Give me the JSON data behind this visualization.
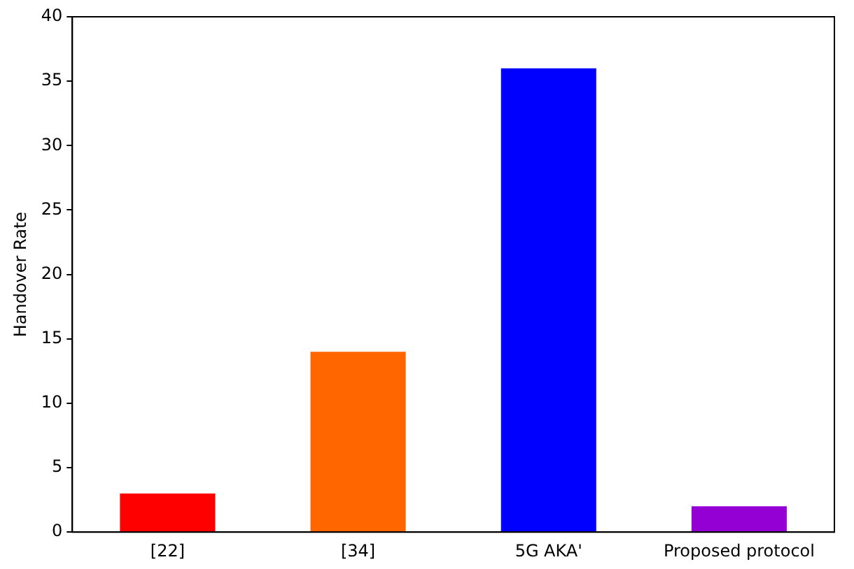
{
  "chart_data": {
    "type": "bar",
    "ylabel": "Handover Rate",
    "categories": [
      "[22]",
      "[34]",
      "5G AKA'",
      "Proposed protocol"
    ],
    "values": [
      3,
      14,
      36,
      2
    ],
    "colors": [
      "#ff0000",
      "#ff6600",
      "#0000ff",
      "#9400d3"
    ],
    "ylim": [
      0,
      40
    ],
    "yticks": [
      0,
      5,
      10,
      15,
      20,
      25,
      30,
      35,
      40
    ],
    "grid": false,
    "legend": false
  }
}
